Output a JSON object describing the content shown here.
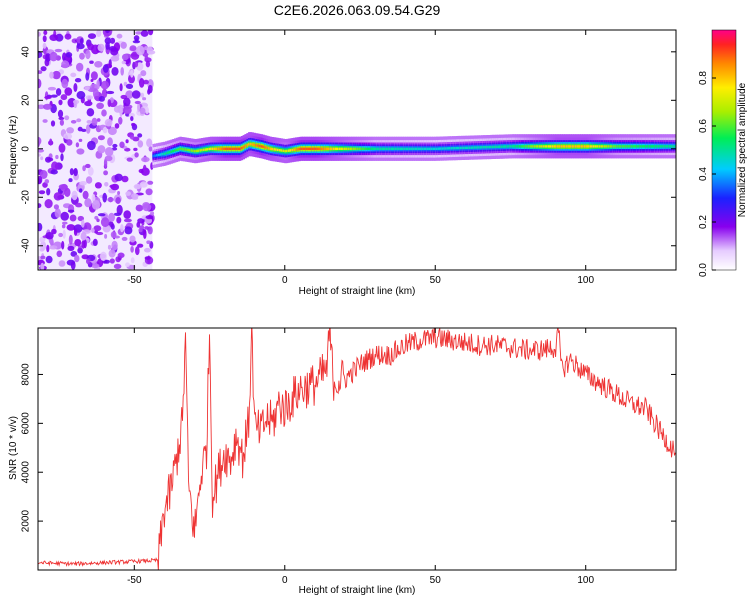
{
  "title": "C2E6.2026.063.09.54.G29",
  "chart_data": [
    {
      "type": "heatmap",
      "xlabel": "Height of straight line (km)",
      "ylabel": "Frequency (Hz)",
      "xlim": [
        -82,
        130
      ],
      "ylim": [
        -50,
        49
      ],
      "xticks": [
        -50,
        0,
        50,
        100
      ],
      "yticks": [
        -40,
        -20,
        0,
        20,
        40
      ],
      "noise_region_x": [
        -82,
        -44
      ],
      "ridge": [
        {
          "x": -44,
          "f": -3,
          "amp": 0.35
        },
        {
          "x": -40,
          "f": -2,
          "amp": 0.5
        },
        {
          "x": -35,
          "f": 0,
          "amp": 0.6
        },
        {
          "x": -30,
          "f": -1,
          "amp": 0.65
        },
        {
          "x": -25,
          "f": 0,
          "amp": 0.75
        },
        {
          "x": -20,
          "f": 0,
          "amp": 0.9
        },
        {
          "x": -15,
          "f": 0,
          "amp": 0.9
        },
        {
          "x": -12,
          "f": 2,
          "amp": 0.8
        },
        {
          "x": -8,
          "f": 1,
          "amp": 0.9
        },
        {
          "x": -5,
          "f": 0,
          "amp": 0.8
        },
        {
          "x": 0,
          "f": -1,
          "amp": 0.7
        },
        {
          "x": 5,
          "f": 0,
          "amp": 0.9
        },
        {
          "x": 10,
          "f": 0,
          "amp": 0.9
        },
        {
          "x": 20,
          "f": 0,
          "amp": 0.7
        },
        {
          "x": 30,
          "f": 0,
          "amp": 0.5
        },
        {
          "x": 50,
          "f": 0,
          "amp": 0.45
        },
        {
          "x": 75,
          "f": 1,
          "amp": 0.5
        },
        {
          "x": 90,
          "f": 1,
          "amp": 0.8
        },
        {
          "x": 100,
          "f": 1,
          "amp": 0.8
        },
        {
          "x": 110,
          "f": 1,
          "amp": 0.6
        },
        {
          "x": 130,
          "f": 1,
          "amp": 0.5
        }
      ],
      "colorbar": {
        "label": "Normalized spectral amplitude",
        "ticks": [
          0.0,
          0.2,
          0.4,
          0.6,
          0.8
        ],
        "range": [
          0,
          1
        ]
      }
    },
    {
      "type": "line",
      "xlabel": "Height of straight line (km)",
      "ylabel": "SNR (10 * v/v)",
      "xlim": [
        -82,
        130
      ],
      "ylim": [
        0,
        9900
      ],
      "xticks": [
        -50,
        0,
        50,
        100
      ],
      "yticks": [
        2000,
        4000,
        6000,
        8000
      ],
      "color": "#ee3333",
      "x": [
        -82,
        -70,
        -60,
        -50,
        -42,
        -40,
        -38,
        -36,
        -34,
        -33,
        -32,
        -30,
        -28,
        -26,
        -25,
        -24,
        -22,
        -20,
        -18,
        -16,
        -14,
        -12,
        -11,
        -10,
        -8,
        -6,
        -4,
        -2,
        0,
        5,
        10,
        14,
        15,
        16,
        20,
        25,
        30,
        35,
        40,
        45,
        50,
        55,
        60,
        65,
        70,
        75,
        80,
        85,
        90,
        91,
        92,
        95,
        100,
        105,
        110,
        115,
        120,
        125,
        130
      ],
      "y": [
        300,
        250,
        300,
        350,
        400,
        2500,
        3200,
        4500,
        6000,
        9500,
        3500,
        1500,
        3800,
        5000,
        9800,
        3000,
        4000,
        4800,
        4500,
        5500,
        4600,
        6000,
        9800,
        5800,
        5600,
        6200,
        6000,
        6800,
        6600,
        7400,
        7600,
        8200,
        9800,
        7800,
        7800,
        8400,
        8800,
        8800,
        9200,
        9400,
        9500,
        9400,
        9300,
        9200,
        9200,
        9100,
        9000,
        9000,
        9100,
        9700,
        8200,
        8600,
        8000,
        7600,
        7200,
        6800,
        6600,
        5600,
        4800
      ]
    }
  ]
}
